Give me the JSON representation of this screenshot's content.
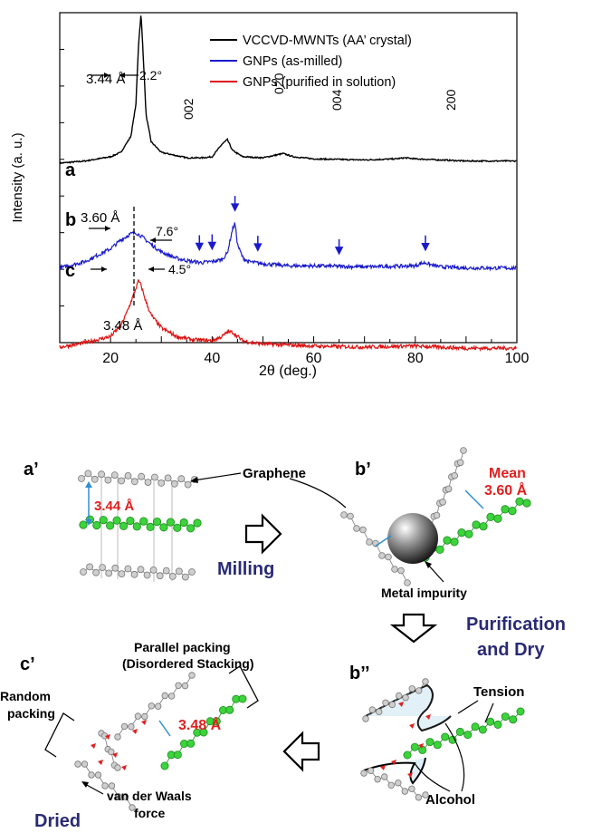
{
  "chart_data": {
    "type": "line",
    "xlabel": "2θ (deg.)",
    "ylabel": "Intensity (a. u.)",
    "xlim": [
      10,
      100
    ],
    "x_ticks": [
      "20",
      "40",
      "60",
      "80",
      "100"
    ],
    "legend": {
      "placement": "top-right",
      "entries": [
        {
          "label": "VCCVD-MWNTs (AA’ crystal)",
          "color": "#000000"
        },
        {
          "label": "GNPs (as-milled)",
          "color": "#1a1acc"
        },
        {
          "label": "GNPs (purified in solution)",
          "color": "#dd1111"
        }
      ]
    },
    "series": [
      {
        "label": "a",
        "color": "#000000",
        "offset": 0.0,
        "x": [
          10,
          15,
          20,
          22,
          24,
          25,
          25.5,
          26,
          26.5,
          27,
          28,
          30,
          35,
          38,
          40,
          42,
          43,
          44,
          46,
          50,
          53,
          54,
          56,
          60,
          70,
          76,
          78,
          80,
          85,
          90,
          100
        ],
        "y": [
          0.0,
          0.02,
          0.06,
          0.1,
          0.25,
          0.55,
          1.1,
          1.4,
          0.95,
          0.45,
          0.2,
          0.1,
          0.05,
          0.05,
          0.06,
          0.18,
          0.22,
          0.12,
          0.06,
          0.05,
          0.08,
          0.09,
          0.06,
          0.04,
          0.03,
          0.04,
          0.05,
          0.04,
          0.03,
          0.02,
          0.02
        ]
      },
      {
        "label": "b",
        "color": "#1a1acc",
        "offset": -0.98,
        "x": [
          10,
          15,
          20,
          22,
          24,
          25,
          26,
          28,
          30,
          33,
          36,
          38,
          40,
          42,
          43,
          44,
          44.5,
          45,
          46,
          47,
          50,
          55,
          60,
          70,
          80,
          81,
          82,
          83,
          85,
          90,
          100
        ],
        "y": [
          0.0,
          0.06,
          0.18,
          0.26,
          0.32,
          0.33,
          0.3,
          0.22,
          0.15,
          0.09,
          0.06,
          0.05,
          0.06,
          0.08,
          0.14,
          0.36,
          0.42,
          0.22,
          0.1,
          0.06,
          0.04,
          0.02,
          0.02,
          0.01,
          0.02,
          0.04,
          0.05,
          0.03,
          0.01,
          0.0,
          0.0
        ]
      },
      {
        "label": "c",
        "color": "#dd1111",
        "offset": -1.72,
        "x": [
          10,
          15,
          20,
          22,
          23,
          24,
          25,
          25.5,
          26,
          27,
          28,
          30,
          33,
          36,
          40,
          42,
          43,
          44,
          45,
          46,
          48,
          50,
          55,
          60,
          70,
          78,
          80,
          85,
          90,
          100
        ],
        "y": [
          0.0,
          0.04,
          0.1,
          0.2,
          0.3,
          0.42,
          0.55,
          0.62,
          0.58,
          0.42,
          0.3,
          0.18,
          0.1,
          0.07,
          0.06,
          0.1,
          0.14,
          0.14,
          0.1,
          0.06,
          0.04,
          0.03,
          0.02,
          0.01,
          0.0,
          0.01,
          0.01,
          0.0,
          -0.01,
          -0.01
        ]
      }
    ],
    "blue_arrows_x": [
      37.5,
      40,
      44.5,
      49,
      65,
      82
    ],
    "peak_labels": [
      "002",
      "020",
      "004",
      "200"
    ],
    "annotations": {
      "d_a": "3.44 Å",
      "w_a": "2.2°",
      "d_b": "3.60 Å",
      "w_b": "7.6°",
      "w_c": "4.5°",
      "d_c": "3.48 Å"
    }
  },
  "schematic": {
    "panel_a": "a’",
    "panel_b": "b’",
    "panel_b2": "b’’",
    "panel_c": "c’",
    "graphene": "Graphene",
    "spacing_a": "3.44 Å",
    "milling": "Milling",
    "mean_1": "Mean",
    "mean_2": "3.60 Å",
    "metal": "Metal impurity",
    "purif_1": "Purification",
    "purif_2": "and Dry",
    "tension": "Tension",
    "alcohol": "Alcohol",
    "parallel_1": "Parallel packing",
    "parallel_2": "(Disordered Stacking)",
    "spacing_c": "3.48 Å",
    "random_1": "Random",
    "random_2": "packing",
    "vdw_1": "van der Waals",
    "vdw_2": "force",
    "dried": "Dried"
  }
}
